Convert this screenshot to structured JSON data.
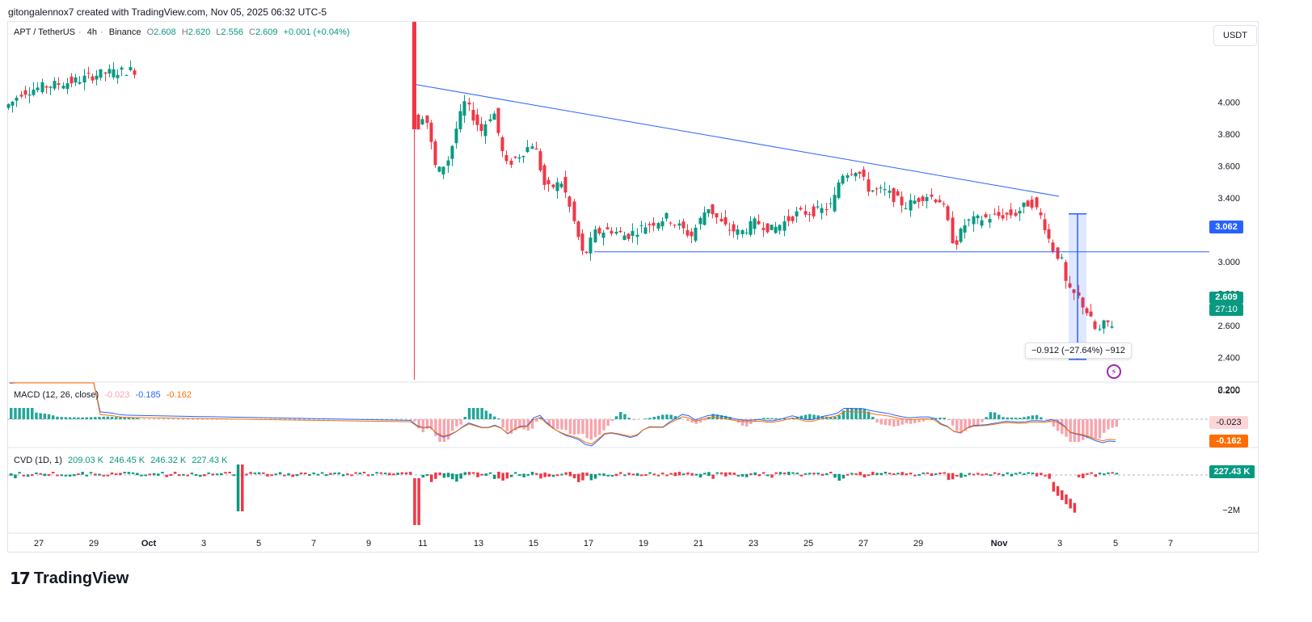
{
  "header": {
    "credit": "gitongalennox7 created with TradingView.com, Nov 05, 2025 06:32 UTC-5"
  },
  "symbol": {
    "name": "APT / TetherUS",
    "interval": "4h",
    "exchange": "Binance",
    "open_label": "O",
    "open": "2.608",
    "high_label": "H",
    "high": "2.620",
    "low_label": "L",
    "low": "2.556",
    "close_label": "C",
    "close": "2.609",
    "change": "+0.001 (+0.04%)"
  },
  "unit_button": "USDT",
  "price_axis": {
    "ticks": [
      "4.000",
      "3.800",
      "3.600",
      "3.400",
      "3.200",
      "3.000",
      "2.800",
      "2.600",
      "2.400",
      "2.200"
    ]
  },
  "tags": {
    "level": "3.062",
    "last_price": "2.609",
    "countdown": "27:10",
    "macd_hist": "-0.023",
    "macd_signal": "-0.162",
    "cvd": "227.43 K"
  },
  "measure": {
    "label": "−0.912 (−27.64%) −912"
  },
  "macd": {
    "name": "MACD (12, 26, close)",
    "v1": "-0.023",
    "v2": "-0.185",
    "v3": "-0.162",
    "axis": [
      "0.200",
      "0.000"
    ]
  },
  "cvd": {
    "name": "CVD (1D, 1)",
    "v1": "209.03 K",
    "v2": "246.45 K",
    "v3": "246.32 K",
    "v4": "227.43 K",
    "axis": [
      "−2M"
    ]
  },
  "time_axis": [
    "27",
    "29",
    "Oct",
    "3",
    "5",
    "7",
    "9",
    "11",
    "13",
    "15",
    "17",
    "19",
    "21",
    "23",
    "25",
    "27",
    "29",
    "Nov",
    "3",
    "5",
    "7"
  ],
  "logo": "TradingView",
  "colors": {
    "up": "#089981",
    "down": "#f23645",
    "line": "#2962ff",
    "signal": "#ff6d00",
    "macd": "#2962ff"
  },
  "chart_data": {
    "type": "candlestick",
    "title": "APT / TetherUS · 4h · Binance",
    "ylim": [
      2.1,
      4.2
    ],
    "anchors": [
      {
        "x": 0,
        "p": 3.93
      },
      {
        "x": 20,
        "p": 4.0
      },
      {
        "x": 30,
        "p": 4.06
      },
      {
        "x": 60,
        "p": 4.1
      },
      {
        "x": 95,
        "p": 4.13
      },
      {
        "x": 130,
        "p": 4.18
      },
      {
        "x": 165,
        "p": 4.2
      },
      {
        "x": 510,
        "p": 4.1
      },
      {
        "x": 520,
        "p": 3.82
      },
      {
        "x": 530,
        "p": 3.95
      },
      {
        "x": 545,
        "p": 3.55
      },
      {
        "x": 560,
        "p": 3.65
      },
      {
        "x": 570,
        "p": 3.85
      },
      {
        "x": 580,
        "p": 4.0
      },
      {
        "x": 600,
        "p": 3.82
      },
      {
        "x": 615,
        "p": 3.95
      },
      {
        "x": 630,
        "p": 3.6
      },
      {
        "x": 650,
        "p": 3.68
      },
      {
        "x": 665,
        "p": 3.75
      },
      {
        "x": 680,
        "p": 3.45
      },
      {
        "x": 700,
        "p": 3.5
      },
      {
        "x": 712,
        "p": 3.3
      },
      {
        "x": 727,
        "p": 3.02
      },
      {
        "x": 740,
        "p": 3.18
      },
      {
        "x": 760,
        "p": 3.2
      },
      {
        "x": 780,
        "p": 3.16
      },
      {
        "x": 800,
        "p": 3.22
      },
      {
        "x": 830,
        "p": 3.28
      },
      {
        "x": 860,
        "p": 3.16
      },
      {
        "x": 880,
        "p": 3.35
      },
      {
        "x": 900,
        "p": 3.22
      },
      {
        "x": 920,
        "p": 3.18
      },
      {
        "x": 940,
        "p": 3.25
      },
      {
        "x": 960,
        "p": 3.2
      },
      {
        "x": 990,
        "p": 3.3
      },
      {
        "x": 1020,
        "p": 3.32
      },
      {
        "x": 1035,
        "p": 3.36
      },
      {
        "x": 1045,
        "p": 3.55
      },
      {
        "x": 1065,
        "p": 3.58
      },
      {
        "x": 1080,
        "p": 3.45
      },
      {
        "x": 1100,
        "p": 3.44
      },
      {
        "x": 1125,
        "p": 3.35
      },
      {
        "x": 1150,
        "p": 3.42
      },
      {
        "x": 1170,
        "p": 3.38
      },
      {
        "x": 1185,
        "p": 3.1
      },
      {
        "x": 1200,
        "p": 3.25
      },
      {
        "x": 1230,
        "p": 3.28
      },
      {
        "x": 1260,
        "p": 3.3
      },
      {
        "x": 1280,
        "p": 3.38
      },
      {
        "x": 1295,
        "p": 3.26
      },
      {
        "x": 1305,
        "p": 3.1
      },
      {
        "x": 1318,
        "p": 3.0
      },
      {
        "x": 1325,
        "p": 2.82
      },
      {
        "x": 1338,
        "p": 2.78
      },
      {
        "x": 1350,
        "p": 2.68
      },
      {
        "x": 1362,
        "p": 2.55
      },
      {
        "x": 1372,
        "p": 2.62
      },
      {
        "x": 1380,
        "p": 2.609
      }
    ],
    "trendline": [
      {
        "x": 515,
        "p": 4.11
      },
      {
        "x": 1310,
        "p": 3.41
      }
    ],
    "support": {
      "x_start": 735,
      "p": 3.062
    },
    "measure": {
      "from": 3.3,
      "to": 2.388,
      "change": -0.912,
      "pct": -27.64
    },
    "macd_values": {
      "macd": -0.185,
      "signal": -0.162,
      "hist": -0.023
    },
    "cvd_value": 227430
  }
}
